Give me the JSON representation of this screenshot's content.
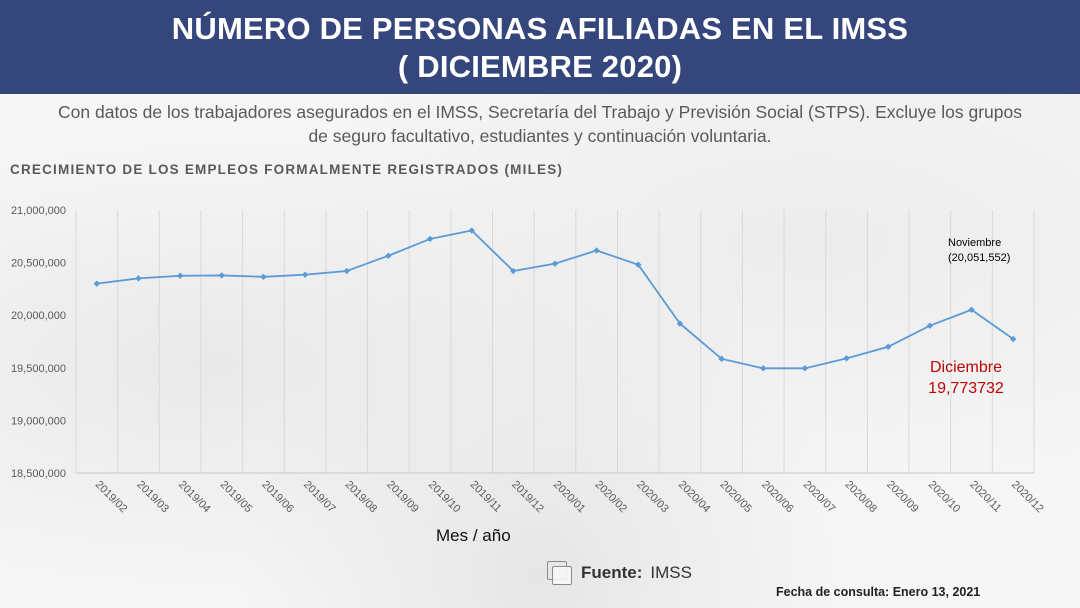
{
  "header": {
    "title_line1": "NÚMERO DE PERSONAS AFILIADAS EN EL IMSS",
    "title_line2": "( DICIEMBRE 2020)"
  },
  "description_line1": "Con datos de los trabajadores asegurados en el IMSS, Secretaría del Trabajo y Previsión Social (STPS). Excluye los grupos",
  "description_line2": "de seguro facultativo, estudiantes y continuación voluntaria.",
  "footer": {
    "source_label": "Fuente:",
    "source_value": "IMSS",
    "fecha": "Fecha de consulta: Enero 13, 2021"
  },
  "colors": {
    "header_bg": "#34467b",
    "line": "#5b9bd5",
    "highlight": "#c00000"
  },
  "chart_data": {
    "type": "line",
    "title": "CRECIMIENTO DE LOS EMPLEOS FORMALMENTE REGISTRADOS (MILES)",
    "xlabel": "Mes / año",
    "ylabel": "",
    "ylim": [
      18500000,
      21000000
    ],
    "yticks": [
      18500000,
      19000000,
      19500000,
      20000000,
      20500000,
      21000000
    ],
    "ytick_labels": [
      "18,500,000",
      "19,000,000",
      "19,500,000",
      "20,000,000",
      "20,500,000",
      "21,000,000"
    ],
    "grid": "vertical",
    "legend": "none",
    "categories": [
      "2019/02",
      "2019/03",
      "2019/04",
      "2019/05",
      "2019/06",
      "2019/07",
      "2019/08",
      "2019/09",
      "2019/10",
      "2019/11",
      "2019/12",
      "2020/01",
      "2020/02",
      "2020/03",
      "2020/04",
      "2020/05",
      "2020/06",
      "2020/07",
      "2020/08",
      "2020/09",
      "2020/10",
      "2020/11",
      "2020/12"
    ],
    "values": [
      20300000,
      20350000,
      20375000,
      20378000,
      20365000,
      20385000,
      20420000,
      20565000,
      20725000,
      20805000,
      20420000,
      20490000,
      20615000,
      20480000,
      19920000,
      19585000,
      19495000,
      19495000,
      19590000,
      19700000,
      19900000,
      20051552,
      19773732
    ],
    "annotations": [
      {
        "category": "2020/11",
        "line1": "Noviembre",
        "line2": "(20,051,552)",
        "color": "#000000"
      },
      {
        "category": "2020/12",
        "line1": "Diciembre",
        "line2": "19,773732",
        "color": "#c00000"
      }
    ]
  }
}
